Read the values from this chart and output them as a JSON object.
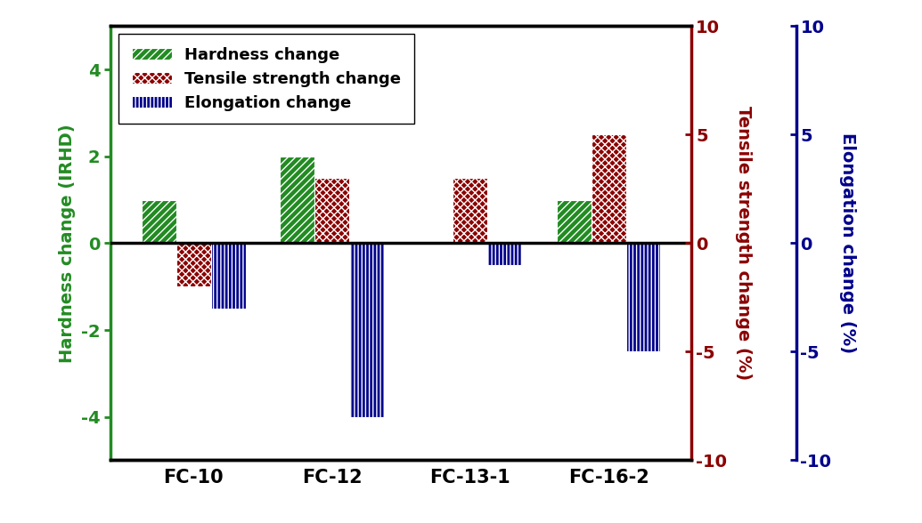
{
  "categories": [
    "FC-10",
    "FC-12",
    "FC-13-1",
    "FC-16-2"
  ],
  "hardness": [
    1,
    2,
    0.0,
    1
  ],
  "tensile_pct": [
    -2.0,
    3.0,
    3.0,
    5.0
  ],
  "elongation_pct": [
    -3.0,
    -8.0,
    -1.0,
    -5.0
  ],
  "hardness_color": "#228B22",
  "tensile_color": "#8B0000",
  "elongation_color": "#00008B",
  "ylim": [
    -5.0,
    5.0
  ],
  "yticks": [
    -4,
    -2,
    0,
    2,
    4
  ],
  "y2lim": [
    -10,
    10
  ],
  "y2ticks": [
    -10,
    -5,
    0,
    5,
    10
  ],
  "ylabel_hardness": "Hardness change (IRHD)",
  "ylabel_tensile": "Tensile strength change (%)",
  "ylabel_elongation": "Elongation change (%)",
  "legend_hardness": "Hardness change",
  "legend_tensile": "Tensile strength change",
  "legend_elongation": "Elongation change",
  "bar_width": 0.25,
  "hatch_hardness": "////",
  "hatch_tensile": "xxxx",
  "hatch_elongation": "||||"
}
